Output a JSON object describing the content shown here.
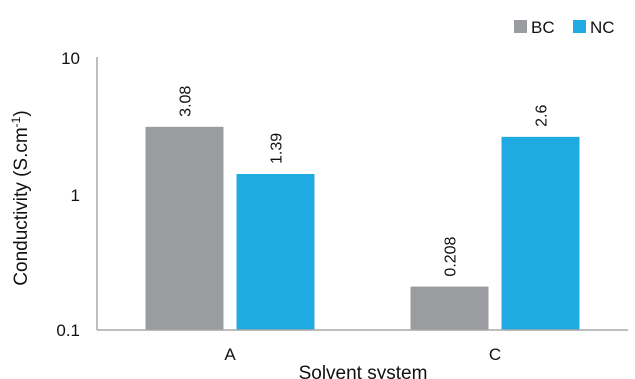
{
  "chart_data": {
    "type": "bar",
    "categories": [
      "A",
      "C"
    ],
    "series": [
      {
        "name": "BC",
        "values": [
          3.08,
          0.208
        ],
        "labels": [
          "3.08",
          "0.208"
        ]
      },
      {
        "name": "NC",
        "values": [
          1.39,
          2.6
        ],
        "labels": [
          "1.39",
          "2.6"
        ]
      }
    ],
    "xlabel": "Solvent system",
    "ylabel": "Conductivity (S.cm",
    "ylabel_superscript": "-1",
    "ylabel_suffix": ")",
    "yscale": "log",
    "ylim": [
      0.1,
      10
    ],
    "yticks": [
      "0.1",
      "1",
      "10"
    ],
    "grid": false,
    "legend_position": "top-right"
  },
  "colors": {
    "BC": "#9a9c9f",
    "NC": "#1fabe1",
    "axis": "#a8a8a8"
  }
}
